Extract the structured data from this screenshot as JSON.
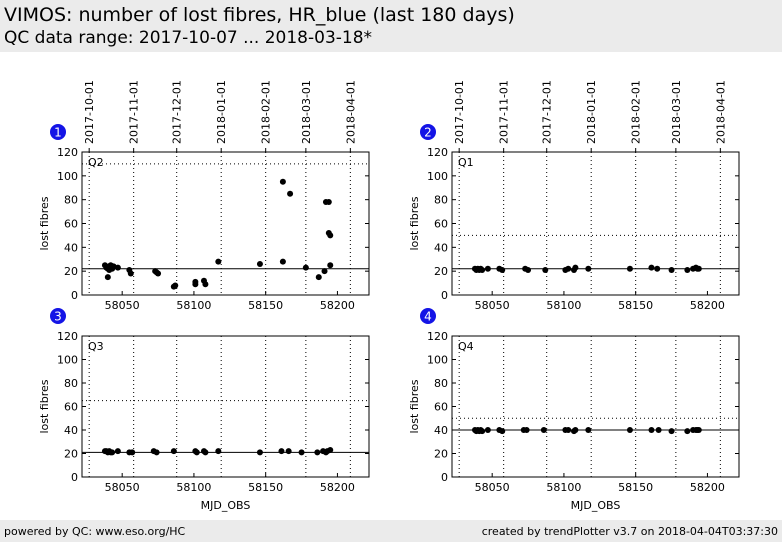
{
  "header": {
    "title": "VIMOS: number of lost fibres, HR_blue (last 180 days)",
    "subtitle": "QC data range: 2017-10-07 ... 2018-03-18*"
  },
  "footer": {
    "left": "powered by QC: www.eso.org/HC",
    "right": "created by trendPlotter v3.7 on 2018-04-04T03:37:30"
  },
  "colors": {
    "header_bg": "#ebebeb",
    "marker": "#000000",
    "badge": "#1414e6"
  },
  "chart_data": [
    {
      "type": "scatter",
      "badge": "1",
      "label": "Q2",
      "xlabel": "",
      "ylabel": "lost fibres",
      "xlim": [
        58022,
        58222
      ],
      "ylim": [
        0,
        120
      ],
      "yticks": [
        0,
        20,
        40,
        60,
        80,
        100,
        120
      ],
      "xticks": [
        58050,
        58100,
        58150,
        58200
      ],
      "date_ticks": [
        "2017-10-01",
        "2017-11-01",
        "2017-12-01",
        "2018-01-01",
        "2018-02-01",
        "2018-03-01",
        "2018-04-01"
      ],
      "date_tick_mjd": [
        58027,
        58058,
        58088,
        58119,
        58150,
        58178,
        58209
      ],
      "reference_line": 22,
      "threshold_line": 110,
      "points": [
        [
          58038,
          25
        ],
        [
          58039,
          23
        ],
        [
          58040,
          22
        ],
        [
          58040,
          15
        ],
        [
          58041,
          24
        ],
        [
          58041,
          21
        ],
        [
          58042,
          25
        ],
        [
          58043,
          22
        ],
        [
          58044,
          24
        ],
        [
          58047,
          23
        ],
        [
          58055,
          21
        ],
        [
          58056,
          18
        ],
        [
          58073,
          20
        ],
        [
          58074,
          19
        ],
        [
          58075,
          18
        ],
        [
          58086,
          7
        ],
        [
          58087,
          8
        ],
        [
          58101,
          9
        ],
        [
          58101,
          11
        ],
        [
          58107,
          12
        ],
        [
          58108,
          9
        ],
        [
          58117,
          28
        ],
        [
          58146,
          26
        ],
        [
          58162,
          28
        ],
        [
          58162,
          95
        ],
        [
          58167,
          85
        ],
        [
          58178,
          23
        ],
        [
          58187,
          15
        ],
        [
          58191,
          20
        ],
        [
          58192,
          78
        ],
        [
          58194,
          78
        ],
        [
          58194,
          52
        ],
        [
          58195,
          50
        ],
        [
          58195,
          25
        ]
      ]
    },
    {
      "type": "scatter",
      "badge": "2",
      "label": "Q1",
      "xlabel": "",
      "ylabel": "lost fibres",
      "xlim": [
        58022,
        58222
      ],
      "ylim": [
        0,
        120
      ],
      "yticks": [
        0,
        20,
        40,
        60,
        80,
        100,
        120
      ],
      "xticks": [
        58050,
        58100,
        58150,
        58200
      ],
      "date_ticks": [
        "2017-10-01",
        "2017-11-01",
        "2017-12-01",
        "2018-01-01",
        "2018-02-01",
        "2018-03-01",
        "2018-04-01"
      ],
      "date_tick_mjd": [
        58027,
        58058,
        58088,
        58119,
        58150,
        58178,
        58209
      ],
      "reference_line": 22,
      "threshold_line": 50,
      "points": [
        [
          58038,
          22
        ],
        [
          58039,
          21
        ],
        [
          58040,
          22
        ],
        [
          58041,
          21
        ],
        [
          58042,
          22
        ],
        [
          58043,
          21
        ],
        [
          58047,
          22
        ],
        [
          58055,
          22
        ],
        [
          58057,
          21
        ],
        [
          58073,
          22
        ],
        [
          58075,
          21
        ],
        [
          58087,
          21
        ],
        [
          58101,
          21
        ],
        [
          58103,
          22
        ],
        [
          58107,
          21
        ],
        [
          58108,
          23
        ],
        [
          58117,
          22
        ],
        [
          58146,
          22
        ],
        [
          58161,
          23
        ],
        [
          58165,
          22
        ],
        [
          58175,
          21
        ],
        [
          58186,
          21
        ],
        [
          58190,
          22
        ],
        [
          58192,
          23
        ],
        [
          58193,
          22
        ],
        [
          58194,
          22
        ]
      ]
    },
    {
      "type": "scatter",
      "badge": "3",
      "label": "Q3",
      "xlabel": "MJD_OBS",
      "ylabel": "lost fibres",
      "xlim": [
        58022,
        58222
      ],
      "ylim": [
        0,
        120
      ],
      "yticks": [
        0,
        20,
        40,
        60,
        80,
        100,
        120
      ],
      "xticks": [
        58050,
        58100,
        58150,
        58200
      ],
      "date_ticks": [],
      "date_tick_mjd": [
        58027,
        58058,
        58088,
        58119,
        58150,
        58178,
        58209
      ],
      "reference_line": 21,
      "threshold_line": 65,
      "points": [
        [
          58038,
          22
        ],
        [
          58039,
          22
        ],
        [
          58040,
          21
        ],
        [
          58041,
          22
        ],
        [
          58042,
          21
        ],
        [
          58043,
          21
        ],
        [
          58047,
          22
        ],
        [
          58055,
          21
        ],
        [
          58057,
          21
        ],
        [
          58072,
          22
        ],
        [
          58074,
          21
        ],
        [
          58086,
          22
        ],
        [
          58101,
          22
        ],
        [
          58102,
          21
        ],
        [
          58107,
          22
        ],
        [
          58108,
          21
        ],
        [
          58117,
          22
        ],
        [
          58146,
          21
        ],
        [
          58161,
          22
        ],
        [
          58166,
          22
        ],
        [
          58175,
          21
        ],
        [
          58186,
          21
        ],
        [
          58190,
          22
        ],
        [
          58192,
          21
        ],
        [
          58193,
          22
        ],
        [
          58195,
          23
        ]
      ]
    },
    {
      "type": "scatter",
      "badge": "4",
      "label": "Q4",
      "xlabel": "MJD_OBS",
      "ylabel": "lost fibres",
      "xlim": [
        58022,
        58222
      ],
      "ylim": [
        0,
        120
      ],
      "yticks": [
        0,
        20,
        40,
        60,
        80,
        100,
        120
      ],
      "xticks": [
        58050,
        58100,
        58150,
        58200
      ],
      "date_ticks": [],
      "date_tick_mjd": [
        58027,
        58058,
        58088,
        58119,
        58150,
        58178,
        58209
      ],
      "reference_line": 40,
      "threshold_line": 50,
      "points": [
        [
          58038,
          40
        ],
        [
          58039,
          39
        ],
        [
          58040,
          40
        ],
        [
          58041,
          39
        ],
        [
          58042,
          40
        ],
        [
          58043,
          39
        ],
        [
          58047,
          40
        ],
        [
          58055,
          40
        ],
        [
          58057,
          39
        ],
        [
          58072,
          40
        ],
        [
          58074,
          40
        ],
        [
          58086,
          40
        ],
        [
          58101,
          40
        ],
        [
          58103,
          40
        ],
        [
          58107,
          39
        ],
        [
          58108,
          40
        ],
        [
          58117,
          40
        ],
        [
          58146,
          40
        ],
        [
          58161,
          40
        ],
        [
          58166,
          40
        ],
        [
          58175,
          39
        ],
        [
          58186,
          39
        ],
        [
          58190,
          40
        ],
        [
          58192,
          40
        ],
        [
          58193,
          40
        ],
        [
          58194,
          40
        ]
      ]
    }
  ]
}
